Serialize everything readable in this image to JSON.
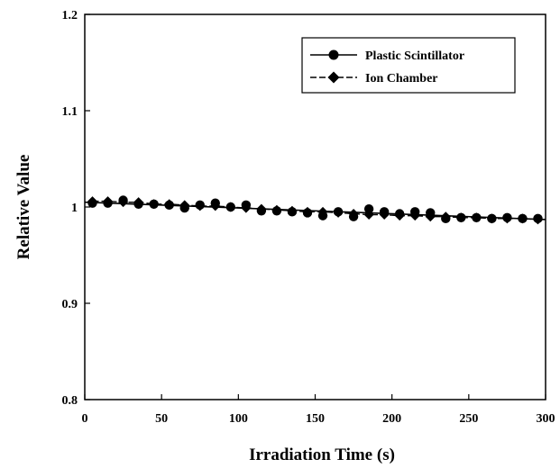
{
  "chart_data": {
    "type": "line",
    "title": "",
    "xlabel": "Irradiation Time (s)",
    "ylabel": "Relative Value",
    "xlim": [
      0,
      300
    ],
    "ylim": [
      0.8,
      1.2
    ],
    "x_ticks": [
      "0",
      "50",
      "100",
      "150",
      "200",
      "250",
      "300"
    ],
    "y_ticks": [
      "0.8",
      "0.9",
      "1",
      "1.1",
      "1.2"
    ],
    "grid": false,
    "legend_position": "top-right",
    "series": [
      {
        "name": "Plastic Scintillator",
        "marker": "circle",
        "color": "#000000",
        "x": [
          5,
          15,
          25,
          35,
          45,
          55,
          65,
          75,
          85,
          95,
          105,
          115,
          125,
          135,
          145,
          155,
          165,
          175,
          185,
          195,
          205,
          215,
          225,
          235,
          245,
          255,
          265,
          275,
          285,
          295
        ],
        "values": [
          1.004,
          1.004,
          1.007,
          1.003,
          1.003,
          1.002,
          0.999,
          1.002,
          1.004,
          1.0,
          1.002,
          0.996,
          0.996,
          0.995,
          0.994,
          0.991,
          0.995,
          0.99,
          0.998,
          0.995,
          0.993,
          0.995,
          0.994,
          0.988,
          0.989,
          0.989,
          0.988,
          0.989,
          0.988,
          0.988
        ],
        "fit_line": [
          1.005,
          0.987
        ]
      },
      {
        "name": "Ion Chamber",
        "marker": "diamond",
        "color": "#000000",
        "x": [
          5,
          15,
          25,
          35,
          45,
          55,
          65,
          75,
          85,
          95,
          105,
          115,
          125,
          135,
          145,
          155,
          165,
          175,
          185,
          195,
          205,
          215,
          225,
          235,
          245,
          255,
          265,
          275,
          285,
          295
        ],
        "values": [
          1.006,
          1.006,
          1.005,
          1.005,
          1.003,
          1.003,
          1.002,
          1.001,
          1.001,
          1.0,
          0.999,
          0.998,
          0.997,
          0.996,
          0.995,
          0.995,
          0.994,
          0.993,
          0.992,
          0.992,
          0.991,
          0.991,
          0.99,
          0.99,
          0.989,
          0.989,
          0.988,
          0.988,
          0.988,
          0.987
        ]
      }
    ]
  }
}
